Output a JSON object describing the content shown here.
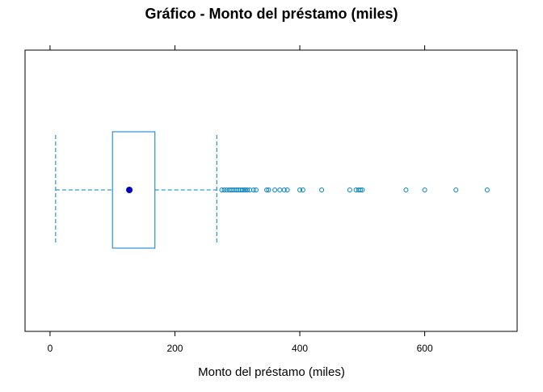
{
  "chart_data": {
    "type": "boxplot",
    "title": "Gráfico - Monto del préstamo (miles)",
    "xlabel": "Monto del préstamo (miles)",
    "ylabel": "",
    "xlim": [
      -40,
      748
    ],
    "x_ticks": [
      0,
      200,
      400,
      600
    ],
    "top_ticks": [
      0,
      200,
      400,
      600
    ],
    "grid": false,
    "colors": {
      "box": "#0080C0",
      "median": "#0000CD",
      "whisker": "#0080C0",
      "outlier": "#0080C0",
      "frame": "#000000"
    },
    "box": {
      "whisker_low": 9,
      "q1": 100,
      "median": 127,
      "q3": 168,
      "whisker_high": 267
    },
    "outliers": [
      275,
      279,
      283,
      287,
      290,
      293,
      296,
      299,
      302,
      305,
      308,
      311,
      313,
      316,
      320,
      326,
      330,
      347,
      350,
      360,
      368,
      375,
      380,
      400,
      405,
      435,
      480,
      490,
      494,
      497,
      500,
      570,
      600,
      650,
      700
    ]
  }
}
